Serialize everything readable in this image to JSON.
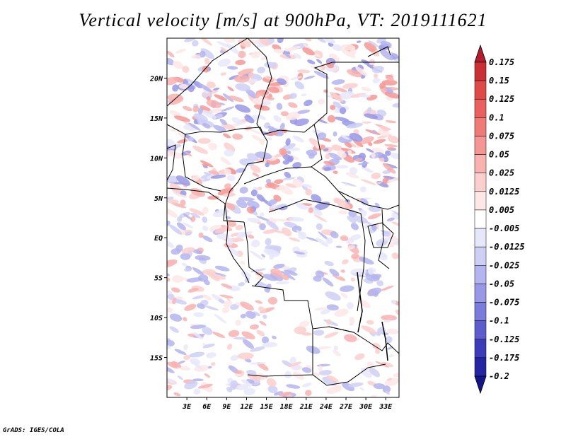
{
  "title": "Vertical velocity [m/s] at 900hPa, VT: 2019111621",
  "credit": "GrADS: IGES/COLA",
  "map": {
    "lon_range": [
      0,
      35
    ],
    "lat_range": [
      -20,
      25
    ],
    "lat_ticks": [
      {
        "value": 20,
        "label": "20N"
      },
      {
        "value": 15,
        "label": "15N"
      },
      {
        "value": 10,
        "label": "10N"
      },
      {
        "value": 5,
        "label": "5N"
      },
      {
        "value": 0,
        "label": "EQ"
      },
      {
        "value": -5,
        "label": "5S"
      },
      {
        "value": -10,
        "label": "10S"
      },
      {
        "value": -15,
        "label": "15S"
      }
    ],
    "lon_ticks": [
      {
        "value": 3,
        "label": "3E"
      },
      {
        "value": 6,
        "label": "6E"
      },
      {
        "value": 9,
        "label": "9E"
      },
      {
        "value": 12,
        "label": "12E"
      },
      {
        "value": 15,
        "label": "15E"
      },
      {
        "value": 18,
        "label": "18E"
      },
      {
        "value": 21,
        "label": "21E"
      },
      {
        "value": 24,
        "label": "24E"
      },
      {
        "value": 27,
        "label": "27E"
      },
      {
        "value": 30,
        "label": "30E"
      },
      {
        "value": 33,
        "label": "33E"
      }
    ]
  },
  "colorbar": {
    "levels": [
      "0.175",
      "0.15",
      "0.125",
      "0.1",
      "0.075",
      "0.05",
      "0.025",
      "0.0125",
      "0.005",
      "-0.005",
      "-0.0125",
      "-0.025",
      "-0.05",
      "-0.075",
      "-0.1",
      "-0.125",
      "-0.175",
      "-0.2"
    ],
    "colors": [
      "#b11e2d",
      "#c92f33",
      "#dd4a48",
      "#e8615e",
      "#ef7b78",
      "#f49694",
      "#f8b2b0",
      "#fbcfcd",
      "#fde8e7",
      "#ffffff",
      "#e7e7fb",
      "#cfcff6",
      "#b4b4ef",
      "#9898e6",
      "#7b7bdb",
      "#5c5ccc",
      "#3c3cb8",
      "#2525a3",
      "#15158a"
    ]
  }
}
